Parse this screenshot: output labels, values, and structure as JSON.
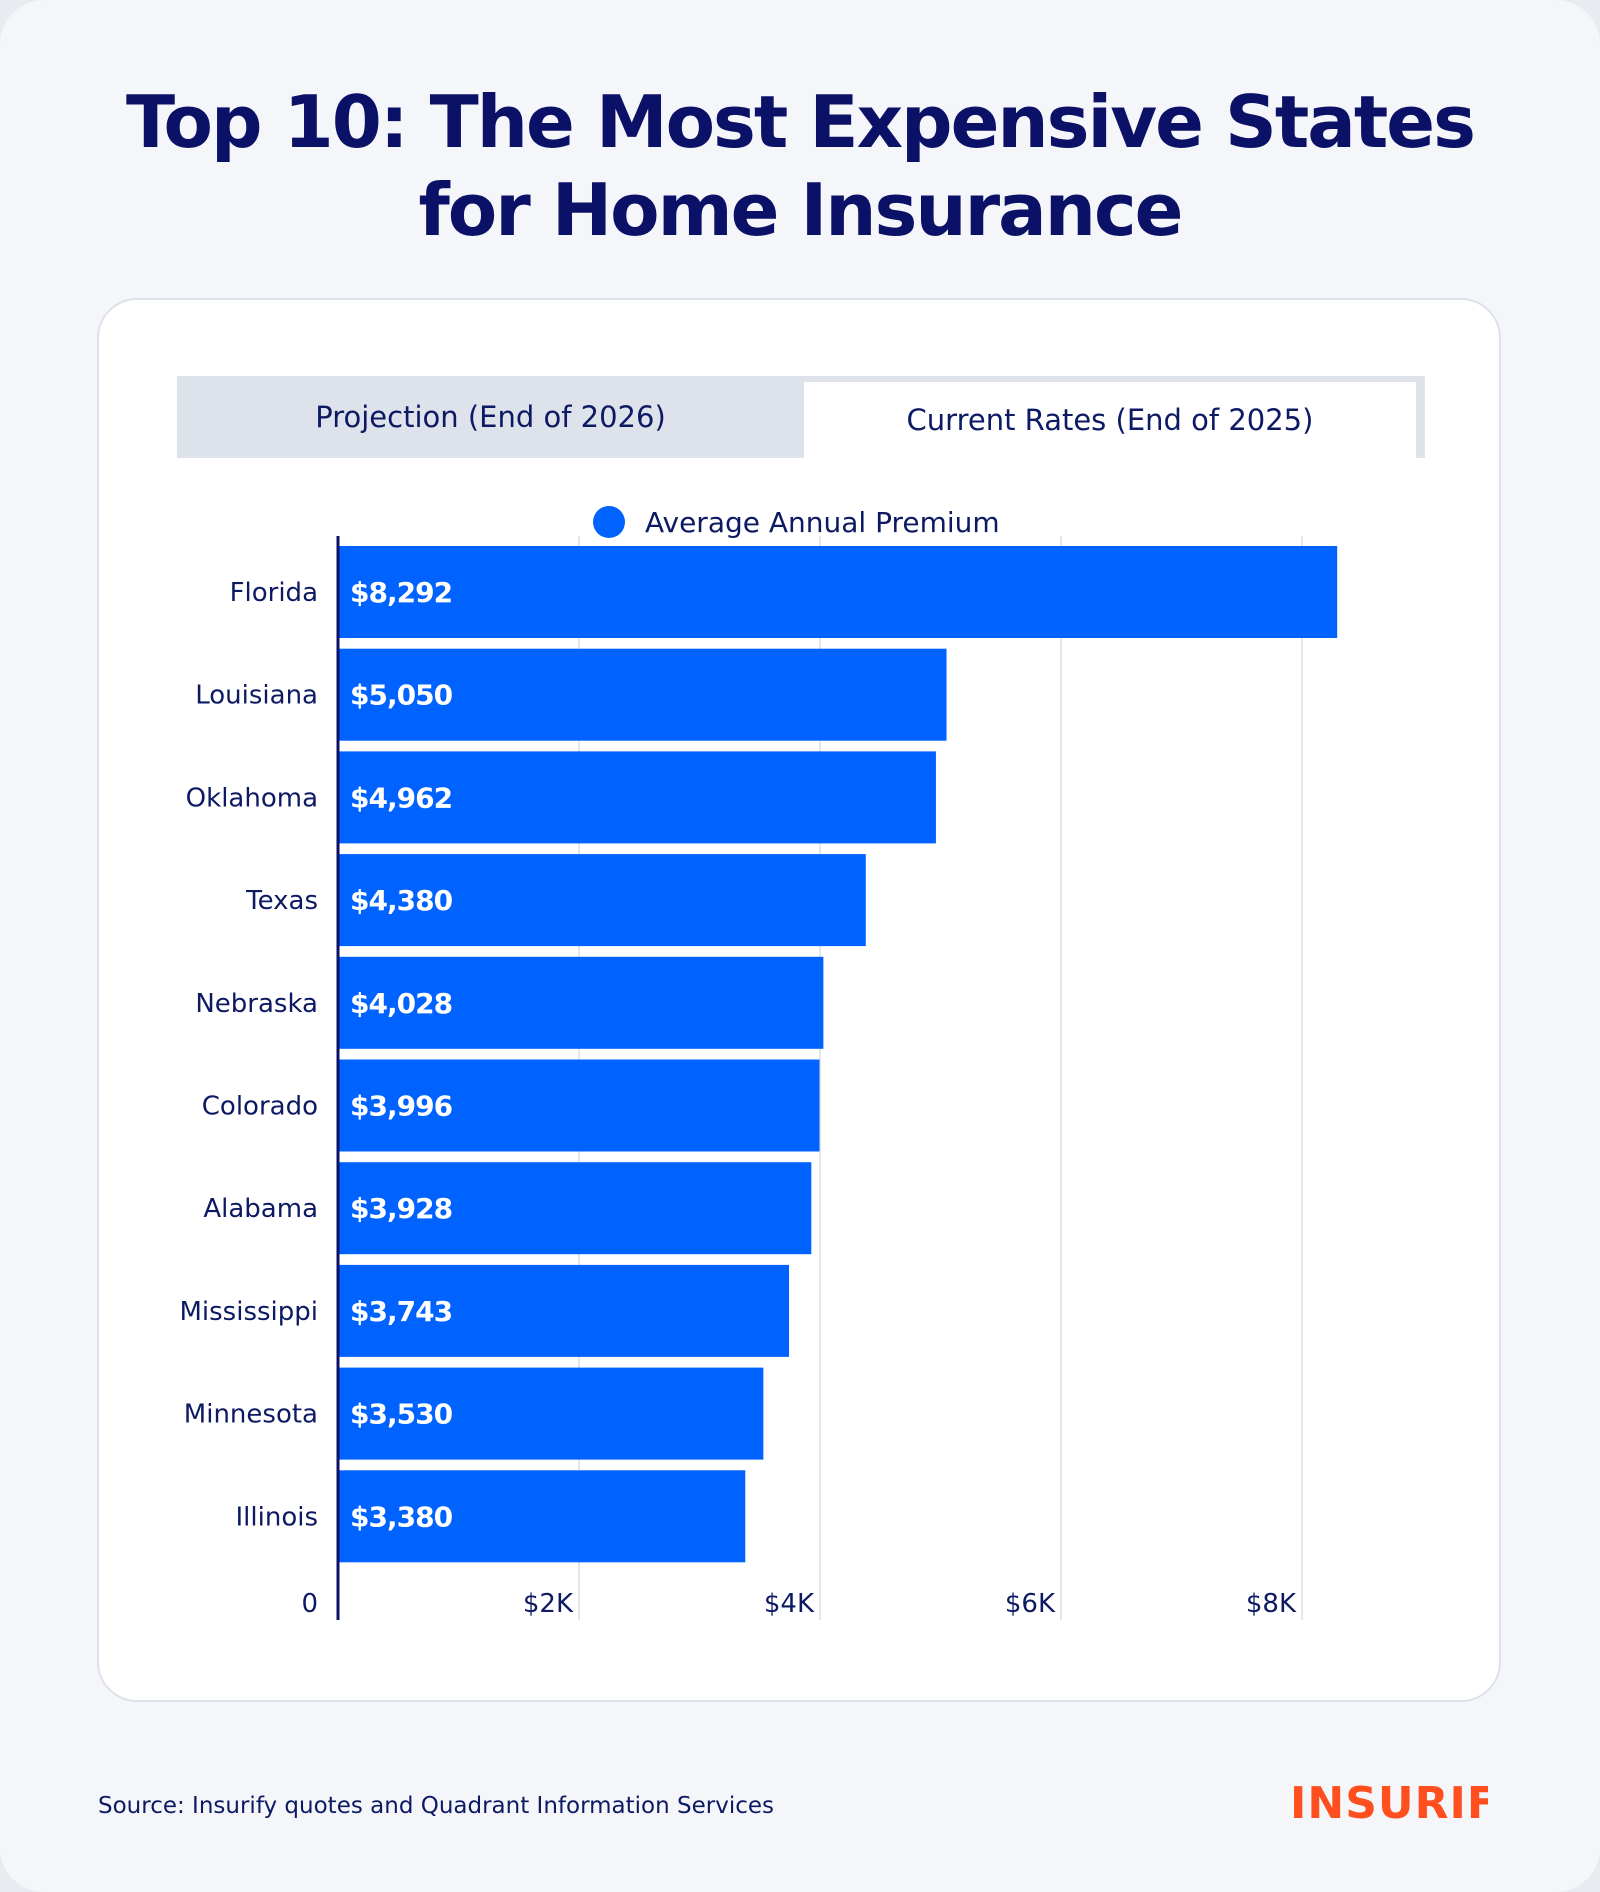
{
  "title": {
    "line1": "Top 10: The Most Expensive States",
    "line2": "for Home Insurance"
  },
  "tabs": [
    {
      "label": "Projection (End of 2026)",
      "active": false
    },
    {
      "label": "Current Rates (End of 2025)",
      "active": true
    }
  ],
  "legend": {
    "label": "Average Annual Premium"
  },
  "footer": {
    "source": "Source: Insurify quotes and Quadrant Information Services",
    "logo": "INSURIFY"
  },
  "colors": {
    "bar": "#0062ff",
    "title": "#0b1166",
    "logo": "#ff4f1f",
    "grid": "#e3e6ec"
  },
  "chart_data": {
    "type": "bar",
    "orientation": "horizontal",
    "title": "Top 10: The Most Expensive States for Home Insurance",
    "categories": [
      "Florida",
      "Louisiana",
      "Oklahoma",
      "Texas",
      "Nebraska",
      "Colorado",
      "Alabama",
      "Mississippi",
      "Minnesota",
      "Illinois"
    ],
    "series": [
      {
        "name": "Average Annual Premium",
        "values": [
          8292,
          5050,
          4962,
          4380,
          4028,
          3996,
          3928,
          3743,
          3530,
          3380
        ],
        "labels": [
          "$8,292",
          "$5,050",
          "$4,962",
          "$4,380",
          "$4,028",
          "$3,996",
          "$3,928",
          "$3,743",
          "$3,530",
          "$3,380"
        ]
      }
    ],
    "xlim": [
      0,
      8000
    ],
    "xticks": [
      0,
      2000,
      4000,
      6000,
      8000
    ],
    "xtick_labels": [
      "0",
      "$2K",
      "$4K",
      "$6K",
      "$8K"
    ],
    "grid": true,
    "legend_position": "top-center",
    "xlabel": "",
    "ylabel": ""
  }
}
